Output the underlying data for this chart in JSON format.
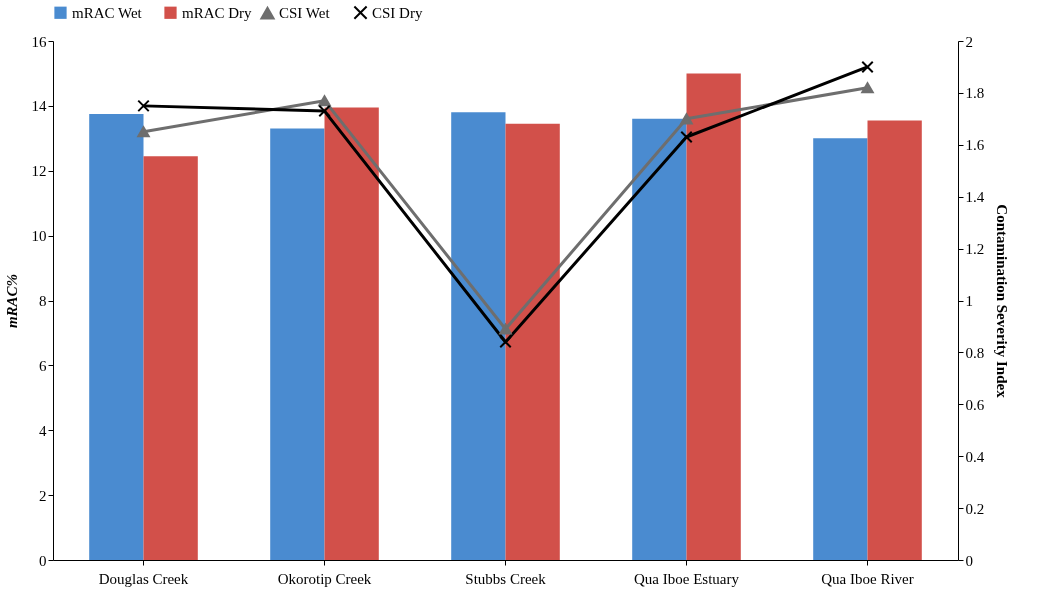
{
  "chart_data": {
    "type": "bar",
    "categories": [
      "Douglas Creek",
      "Okorotip Creek",
      "Stubbs Creek",
      "Qua Iboe Estuary",
      "Qua Iboe River"
    ],
    "ylabel": "mRAC%",
    "y2label": "Contamination Severity Index",
    "ylim": [
      0,
      16
    ],
    "yticks": [
      0,
      2,
      4,
      6,
      8,
      10,
      12,
      14,
      16
    ],
    "y2lim": [
      0,
      2
    ],
    "y2ticks": [
      0,
      0.2,
      0.4,
      0.6,
      0.8,
      1,
      1.2,
      1.4,
      1.6,
      1.8,
      2
    ],
    "legend": "top",
    "grid": false,
    "series": [
      {
        "name": "mRAC Wet",
        "color": "#4a8bd0",
        "values": [
          13.75,
          13.3,
          13.8,
          13.6,
          13.0
        ]
      },
      {
        "name": "mRAC Dry",
        "color": "#d2504a",
        "values": [
          12.45,
          13.95,
          13.45,
          15.0,
          13.55
        ]
      },
      {
        "name": "CSI Wet",
        "type": "line",
        "axis": "y2",
        "marker": "triangle",
        "color": "#6e6e6e",
        "values": [
          1.65,
          1.77,
          0.89,
          1.7,
          1.82
        ]
      },
      {
        "name": "CSI Dry",
        "type": "line",
        "axis": "y2",
        "marker": "cross",
        "color": "#000000",
        "values": [
          1.75,
          1.73,
          0.84,
          1.63,
          1.9
        ]
      }
    ]
  }
}
